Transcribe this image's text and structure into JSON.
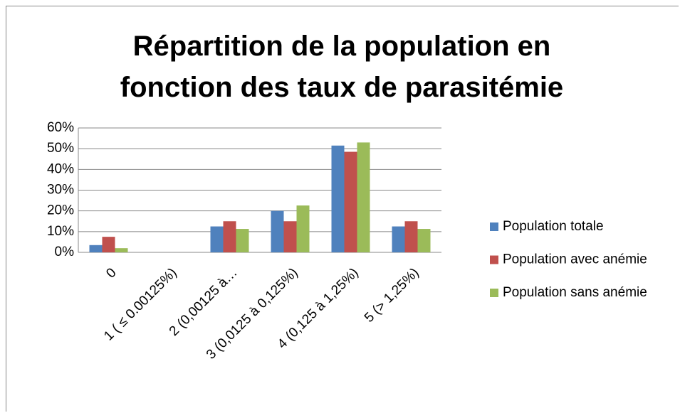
{
  "chart_data": {
    "type": "bar",
    "title": "Répartition de la population en\nfonction des taux de parasitémie",
    "categories": [
      "0",
      "1 ( ≤ 0.00125%)",
      "2 (0,00125 à…",
      "3 (0,0125 à 0,125%)",
      "4 (0,125 à 1,25%)",
      "5 (> 1,25%)"
    ],
    "series": [
      {
        "name": "Population totale",
        "color": "#4f81bd",
        "values": [
          3.5,
          0,
          12.5,
          20,
          51.5,
          12.5
        ]
      },
      {
        "name": "Population avec anémie",
        "color": "#c0504d",
        "values": [
          7.5,
          0,
          15,
          15,
          48.5,
          15
        ]
      },
      {
        "name": "Population sans anémie",
        "color": "#9bbb59",
        "values": [
          2,
          0,
          11.3,
          22.6,
          53,
          11.3
        ]
      }
    ],
    "ylim": [
      0,
      60
    ],
    "yticks": [
      {
        "value": 0,
        "label": "0%"
      },
      {
        "value": 10,
        "label": "10%"
      },
      {
        "value": 20,
        "label": "20%"
      },
      {
        "value": 30,
        "label": "30%"
      },
      {
        "value": 40,
        "label": "40%"
      },
      {
        "value": 50,
        "label": "50%"
      },
      {
        "value": 60,
        "label": "60%"
      }
    ],
    "grid": true,
    "legend": "right"
  }
}
